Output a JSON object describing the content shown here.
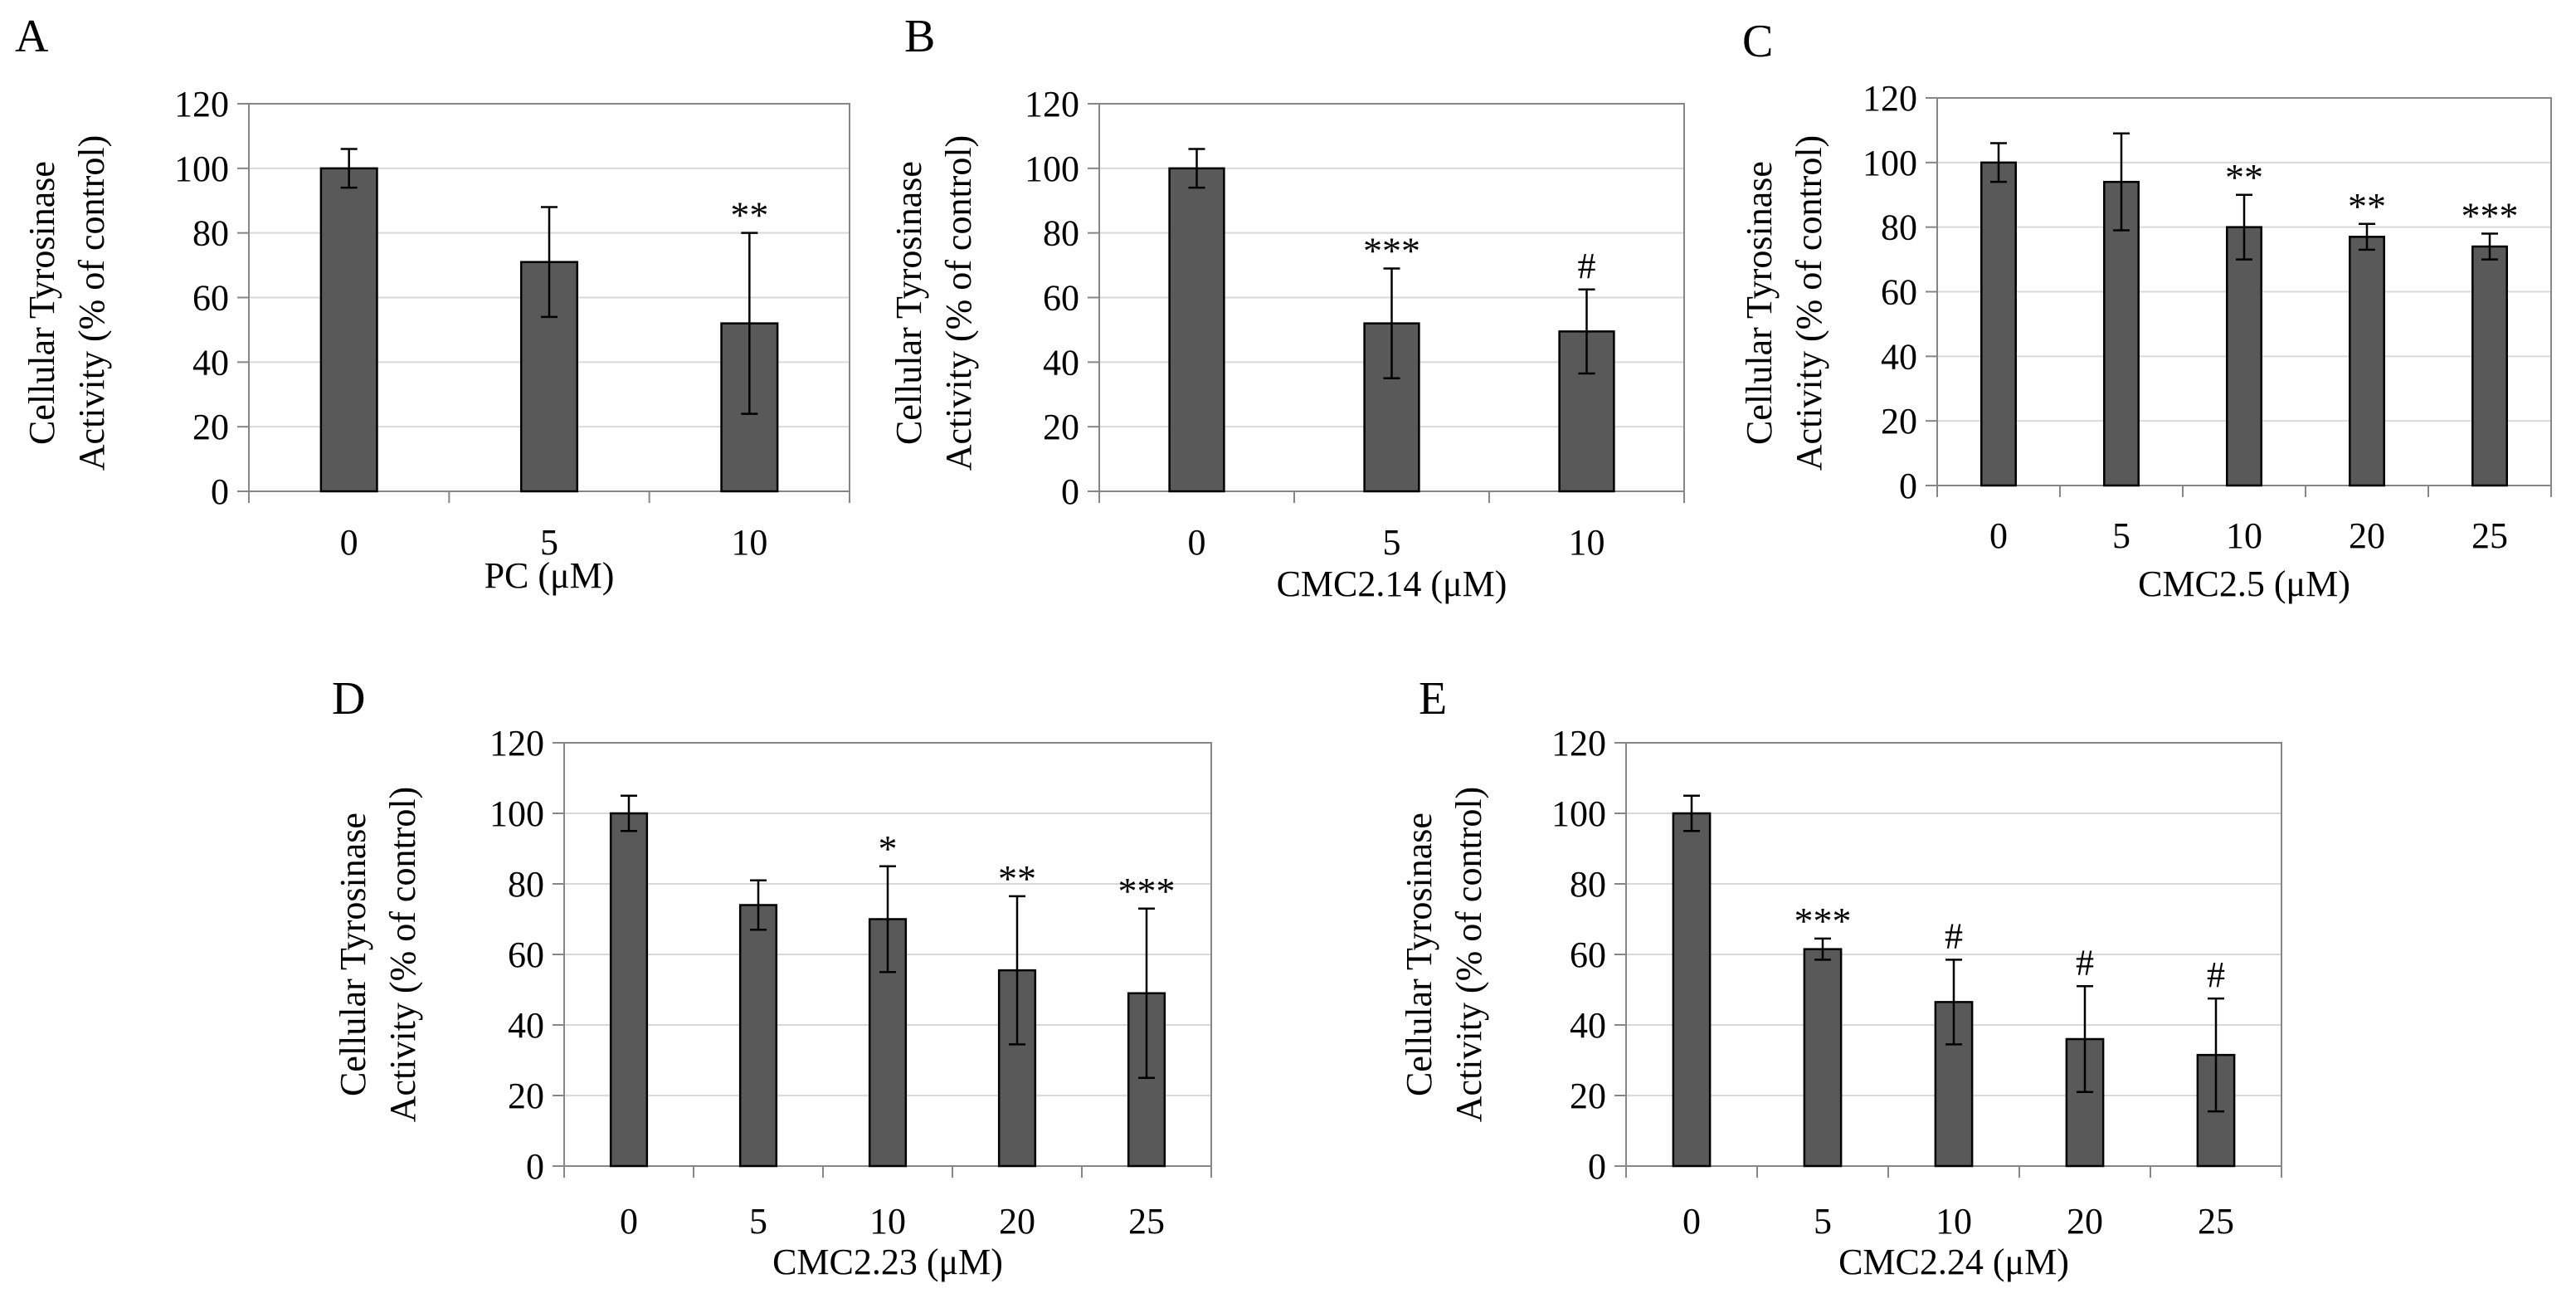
{
  "chart_data": [
    {
      "panel": "A",
      "type": "bar",
      "title": "",
      "categories": [
        "0",
        "5",
        "10"
      ],
      "values": [
        100,
        71,
        52
      ],
      "errors": [
        6,
        17,
        28
      ],
      "significance": [
        "",
        "",
        "**"
      ],
      "xlabel": "PC (μM)",
      "ylabel": [
        "Cellular Tyrosinase",
        "Activity (% of control)"
      ],
      "ylim": [
        0,
        120
      ],
      "yticks": [
        0,
        20,
        40,
        60,
        80,
        100,
        120
      ],
      "grid": true,
      "bar_color": "#595959"
    },
    {
      "panel": "B",
      "type": "bar",
      "title": "",
      "categories": [
        "0",
        "5",
        "10"
      ],
      "values": [
        100,
        52,
        49.5
      ],
      "errors": [
        6,
        17,
        13
      ],
      "significance": [
        "",
        "***",
        "#"
      ],
      "xlabel": "CMC2.14 (μM)",
      "ylabel": [
        "Cellular Tyrosinase",
        "Activity (% of control)"
      ],
      "ylim": [
        0,
        120
      ],
      "yticks": [
        0,
        20,
        40,
        60,
        80,
        100,
        120
      ],
      "grid": true,
      "bar_color": "#595959"
    },
    {
      "panel": "C",
      "type": "bar",
      "title": "",
      "categories": [
        "0",
        "5",
        "10",
        "20",
        "25"
      ],
      "values": [
        100,
        94,
        80,
        77,
        74
      ],
      "errors": [
        6,
        15,
        10,
        4,
        4
      ],
      "significance": [
        "",
        "",
        "**",
        "**",
        "***"
      ],
      "xlabel": "CMC2.5 (μM)",
      "ylabel": [
        "Cellular Tyrosinase",
        "Activity (% of control)"
      ],
      "ylim": [
        0,
        120
      ],
      "yticks": [
        0,
        20,
        40,
        60,
        80,
        100,
        120
      ],
      "grid": true,
      "bar_color": "#595959"
    },
    {
      "panel": "D",
      "type": "bar",
      "title": "",
      "categories": [
        "0",
        "5",
        "10",
        "20",
        "25"
      ],
      "values": [
        100,
        74,
        70,
        55.5,
        49
      ],
      "errors": [
        5,
        7,
        15,
        21,
        24
      ],
      "significance": [
        "",
        "",
        "*",
        "**",
        "***"
      ],
      "xlabel": "CMC2.23 (μM)",
      "ylabel": [
        "Cellular Tyrosinase",
        "Activity (% of control)"
      ],
      "ylim": [
        0,
        120
      ],
      "yticks": [
        0,
        20,
        40,
        60,
        80,
        100,
        120
      ],
      "grid": true,
      "bar_color": "#595959"
    },
    {
      "panel": "E",
      "type": "bar",
      "title": "",
      "categories": [
        "0",
        "5",
        "10",
        "20",
        "25"
      ],
      "values": [
        100,
        61.5,
        46.5,
        36,
        31.5
      ],
      "errors": [
        5,
        3,
        12,
        15,
        16
      ],
      "significance": [
        "",
        "***",
        "#",
        "#",
        "#"
      ],
      "xlabel": "CMC2.24 (μM)",
      "ylabel": [
        "Cellular Tyrosinase",
        "Activity (% of control)"
      ],
      "ylim": [
        0,
        120
      ],
      "yticks": [
        0,
        20,
        40,
        60,
        80,
        100,
        120
      ],
      "grid": true,
      "bar_color": "#595959"
    }
  ]
}
